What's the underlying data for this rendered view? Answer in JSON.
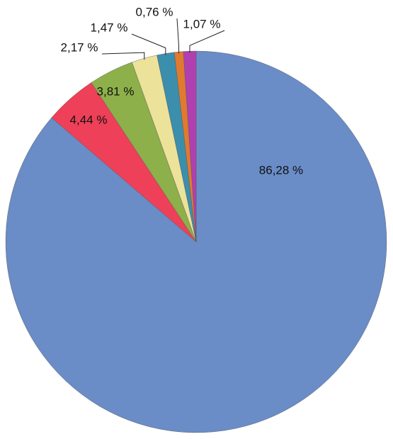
{
  "chart_data": {
    "type": "pie",
    "values": [
      86.28,
      4.44,
      3.81,
      2.17,
      1.47,
      0.76,
      1.07
    ],
    "value_labels": [
      "86,28 %",
      "4,44 %",
      "3,81 %",
      "2,17 %",
      "1,47 %",
      "0,76 %",
      "1,07 %"
    ],
    "colors": [
      "#6a8cc7",
      "#ee4058",
      "#8db04a",
      "#ede29a",
      "#3b8fad",
      "#e07a30",
      "#b040b0"
    ]
  }
}
